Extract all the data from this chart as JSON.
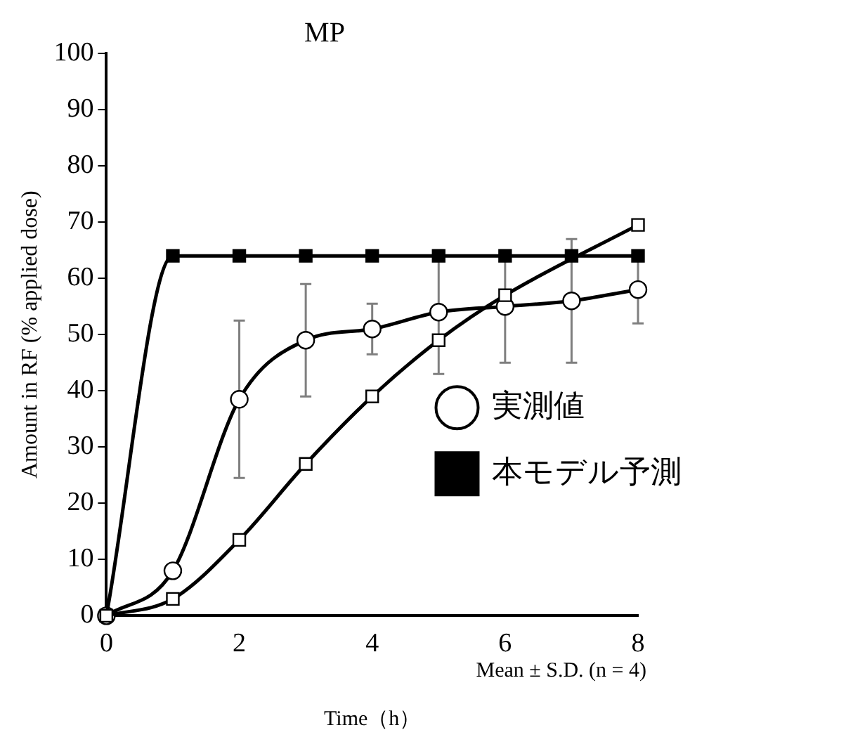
{
  "chart_data": {
    "type": "line",
    "title": "MP",
    "xlabel": "Time（h）",
    "ylabel": "Amount in RF (% applied dose)",
    "annotations": [
      "Mean ± S.D. (n = 4)"
    ],
    "x": [
      0,
      1,
      2,
      3,
      4,
      5,
      6,
      7,
      8
    ],
    "xlim": [
      0,
      8
    ],
    "xticks": [
      0,
      2,
      4,
      6,
      8
    ],
    "ylim": [
      0,
      100
    ],
    "yticks": [
      0,
      10,
      20,
      30,
      40,
      50,
      60,
      70,
      80,
      90,
      100
    ],
    "grid": false,
    "legend": "bottom right",
    "series": [
      {
        "name": "実測値",
        "color": "#ffffff",
        "marker": "circle",
        "values": [
          0,
          8,
          38.5,
          49,
          51,
          54,
          55,
          56,
          58
        ],
        "errors": [
          null,
          null,
          14,
          10,
          4.5,
          11,
          10,
          11,
          6
        ]
      },
      {
        "name": "本モデル予測",
        "color": "#000000",
        "marker": "square",
        "values": [
          0,
          64,
          64,
          64,
          64,
          64,
          64,
          64,
          64
        ]
      },
      {
        "color": "#ffffff",
        "marker": "square",
        "values": [
          0,
          3,
          13.5,
          27,
          39,
          49,
          57,
          null,
          69.5
        ]
      }
    ]
  }
}
